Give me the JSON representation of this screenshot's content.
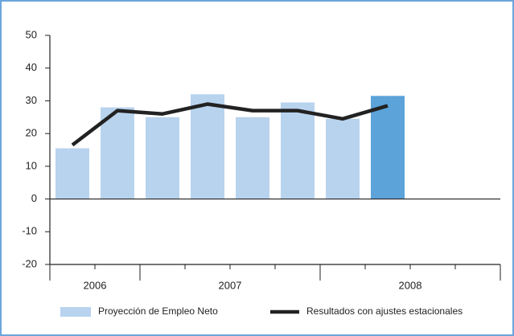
{
  "chart_data": {
    "type": "bar_line",
    "categories": [
      null,
      null,
      null,
      null,
      null,
      null,
      null,
      null,
      null,
      null
    ],
    "groups": [
      {
        "label": "2006",
        "span": 2
      },
      {
        "label": "2007",
        "span": 4
      },
      {
        "label": "2008",
        "span": 4
      }
    ],
    "series": [
      {
        "name": "Proyección de Empleo Neto",
        "type": "bar",
        "color": "#b8d3ee",
        "colors": [
          "#b8d3ee",
          "#b8d3ee",
          "#b8d3ee",
          "#b8d3ee",
          "#b8d3ee",
          "#b8d3ee",
          "#b8d3ee",
          "#5ba3d9",
          null,
          null
        ],
        "values": [
          15.5,
          28,
          25,
          32,
          25,
          29.5,
          24.5,
          31.5,
          null,
          null
        ]
      },
      {
        "name": "Resultados con ajustes estacionales",
        "type": "line",
        "color": "#222222",
        "values": [
          16.5,
          27,
          26,
          29,
          27,
          27,
          24.5,
          28.5,
          null,
          null
        ]
      }
    ],
    "ylim": [
      -20,
      50
    ],
    "yticks": [
      -20,
      -10,
      0,
      10,
      20,
      30,
      40,
      50
    ]
  }
}
